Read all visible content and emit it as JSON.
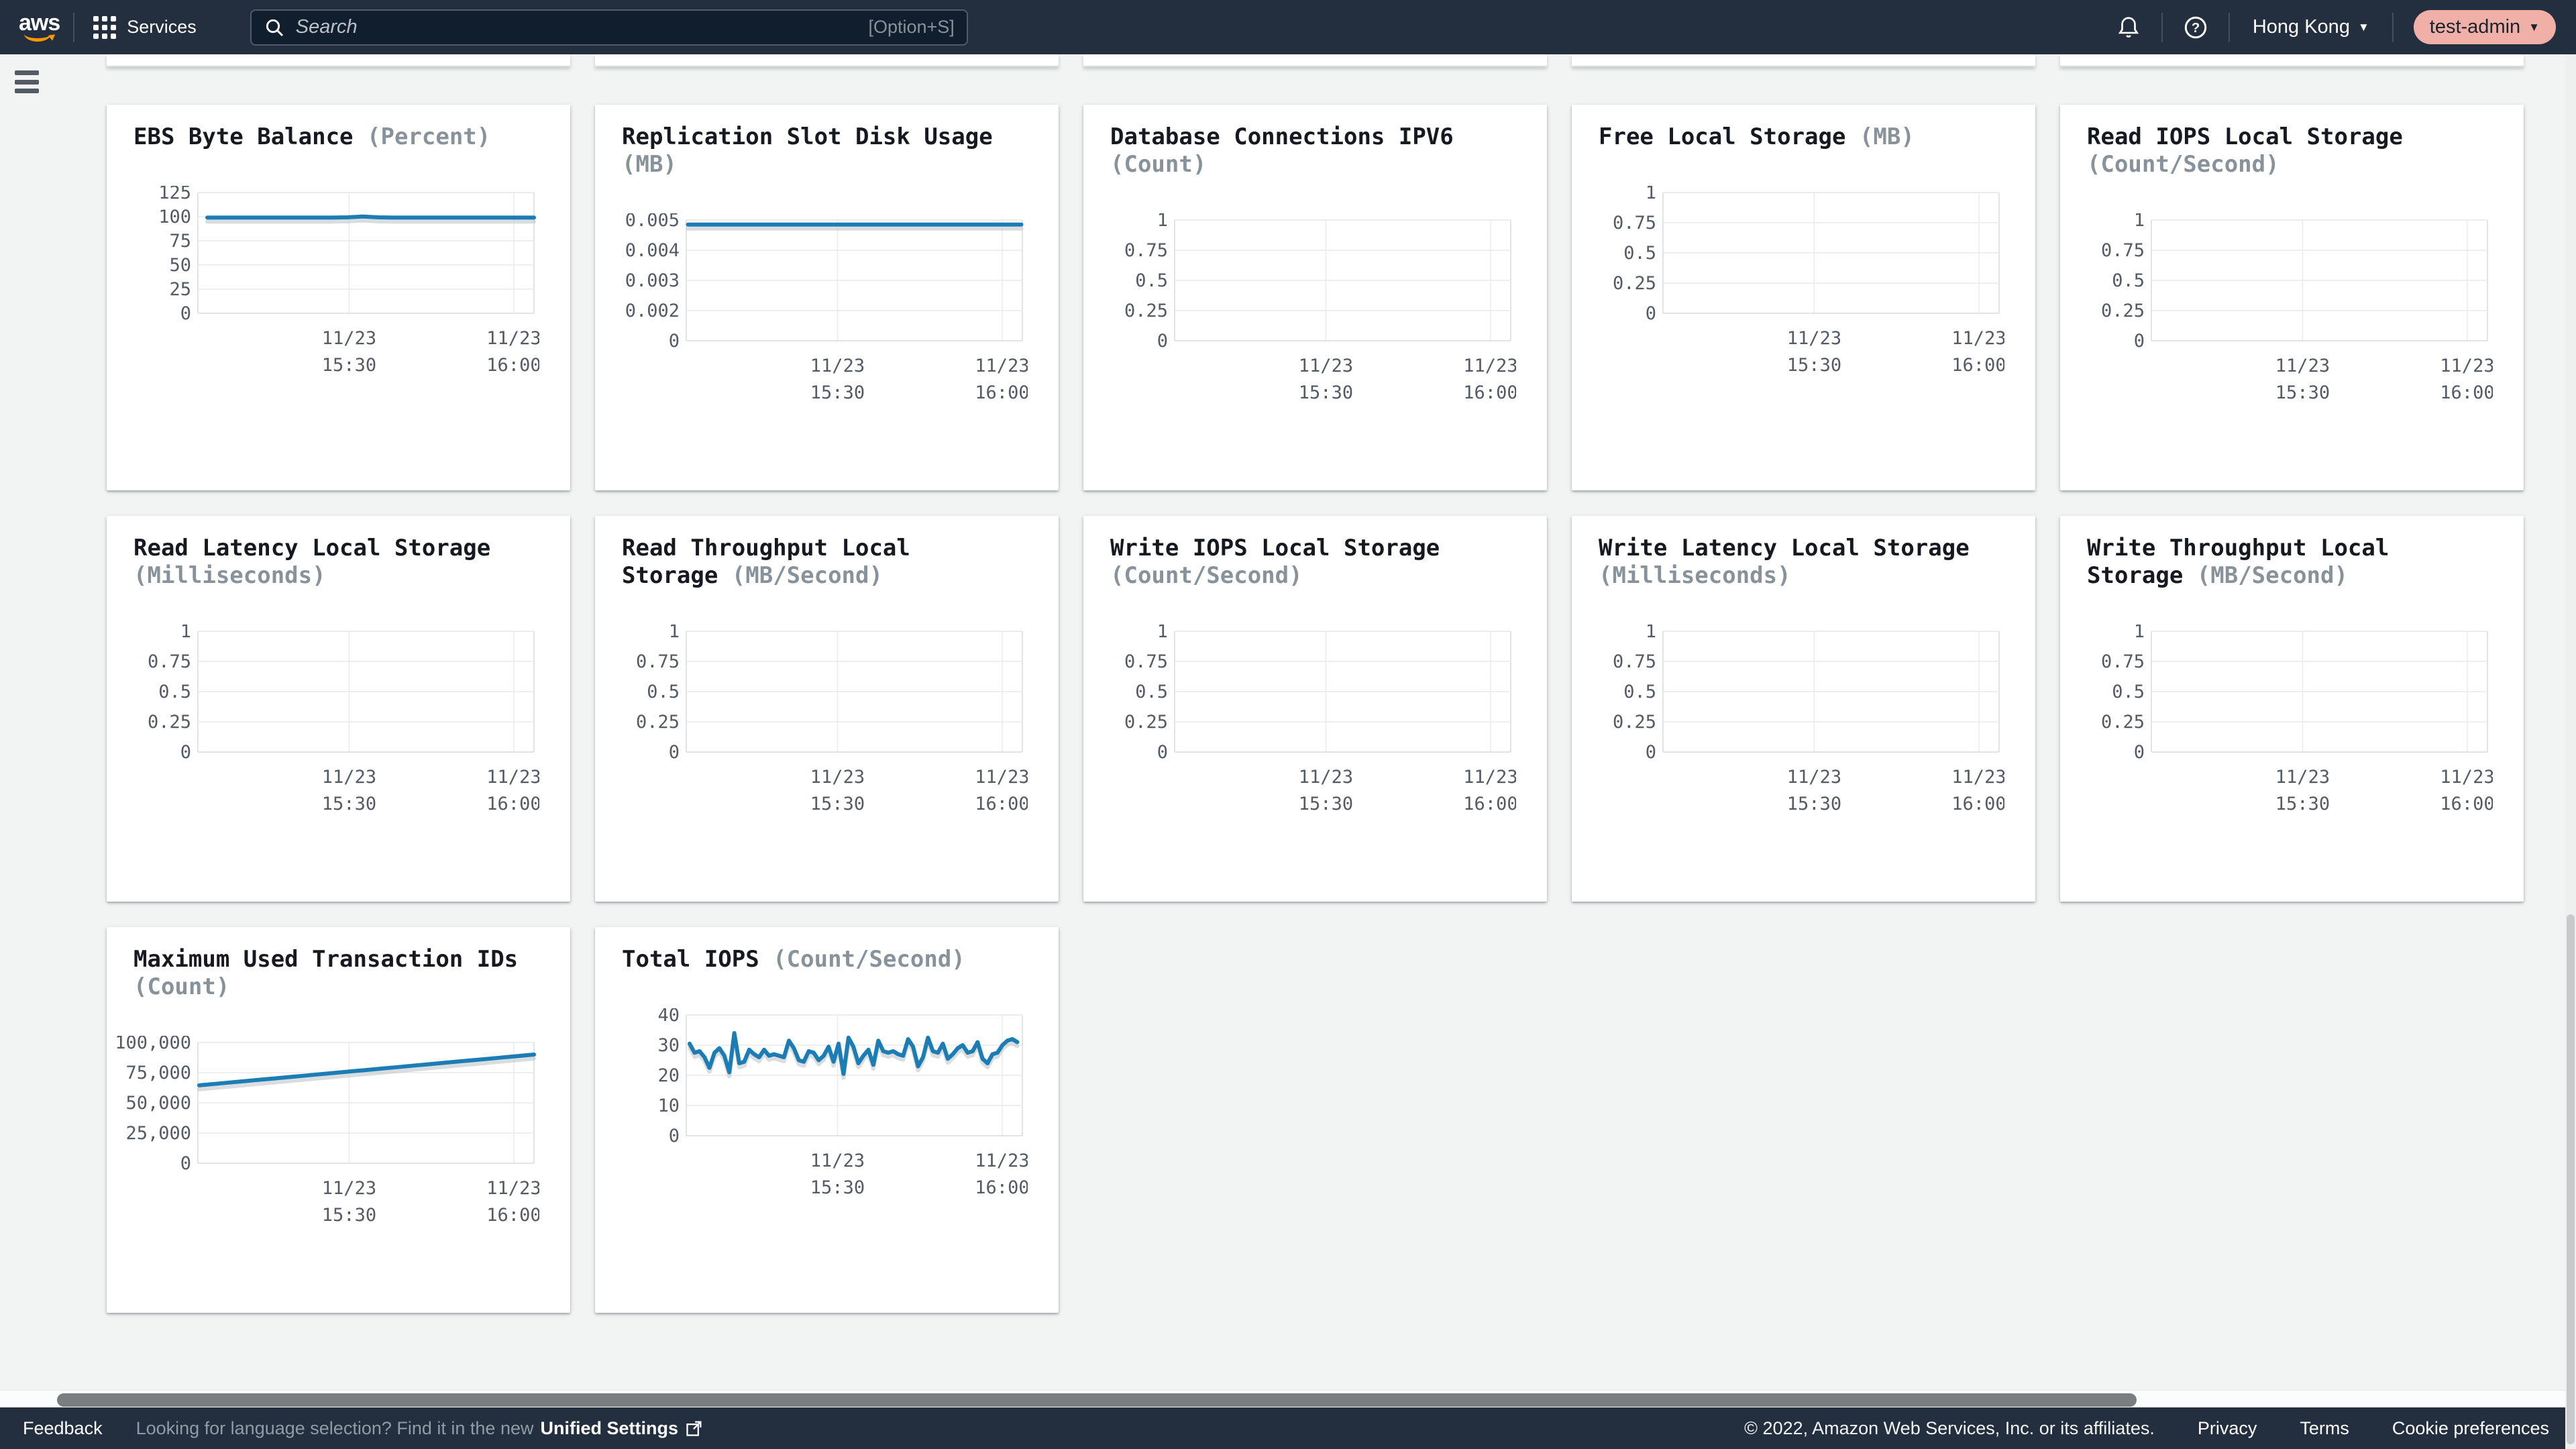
{
  "topnav": {
    "logo": "aws",
    "services_label": "Services",
    "search_placeholder": "Search",
    "search_shortcut": "[Option+S]",
    "region": "Hong Kong",
    "account": "test-admin"
  },
  "colors": {
    "navbar": "#232f3e",
    "background": "#f2f3f3",
    "accent_line": "#1c7db5",
    "line_shadow": "#c2c7c9",
    "account_pill": "#f0b0a7",
    "logo_smile": "#ff9900",
    "title_text": "#16191f",
    "unit_text": "#87929a",
    "tick_text": "#545b64"
  },
  "footer": {
    "feedback": "Feedback",
    "language_hint": "Looking for language selection? Find it in the new",
    "unified_settings": "Unified Settings",
    "copyright": "© 2022, Amazon Web Services, Inc. or its affiliates.",
    "links": [
      "Privacy",
      "Terms",
      "Cookie preferences"
    ]
  },
  "chart_data": [
    {
      "type": "line",
      "title": "EBS Byte Balance",
      "unit": "(Percent)",
      "x_ticks": [
        [
          "11/23",
          "15:30"
        ],
        [
          "11/23",
          "16:00"
        ]
      ],
      "y_ticks": [
        "0",
        "25",
        "50",
        "75",
        "100",
        "125"
      ],
      "y_tick_values": [
        0,
        25,
        50,
        75,
        100,
        125
      ],
      "ylim": [
        0,
        125
      ],
      "x_start": 0.028,
      "x_end": 1.0,
      "series": [
        {
          "name": "EBSByteBalance%",
          "values": [
            99,
            99,
            99,
            99,
            99,
            99,
            99,
            99,
            99,
            99.3,
            100.2,
            99.3,
            99,
            99,
            99,
            99,
            99,
            99,
            99,
            99,
            99,
            99
          ]
        }
      ]
    },
    {
      "type": "line",
      "title": "Replication Slot Disk Usage",
      "unit": "(MB)",
      "x_ticks": [
        [
          "11/23",
          "15:30"
        ],
        [
          "11/23",
          "16:00"
        ]
      ],
      "y_ticks": [
        "0",
        "0.002",
        "0.003",
        "0.004",
        "0.005"
      ],
      "y_tick_values": [
        0,
        0.002,
        0.003,
        0.004,
        0.005
      ],
      "ylim": [
        0,
        0.005
      ],
      "x_start": 0.005,
      "x_end": 0.997,
      "series": [
        {
          "name": "ReplicationSlotDiskUsage",
          "values": [
            0.00485,
            0.00485,
            0.00485,
            0.00485,
            0.00485,
            0.00485,
            0.00485,
            0.00485,
            0.00485,
            0.00485,
            0.00485,
            0.00485,
            0.00485,
            0.00485,
            0.00485,
            0.00485,
            0.00485,
            0.00485,
            0.00485,
            0.00485,
            0.00485,
            0.00485
          ]
        }
      ]
    },
    {
      "type": "line",
      "title": "Database Connections IPV6",
      "unit": "(Count)",
      "x_ticks": [
        [
          "11/23",
          "15:30"
        ],
        [
          "11/23",
          "16:00"
        ]
      ],
      "y_ticks": [
        "0",
        "0.25",
        "0.5",
        "0.75",
        "1"
      ],
      "y_tick_values": [
        0,
        0.25,
        0.5,
        0.75,
        1
      ],
      "ylim": [
        0,
        1
      ],
      "series": []
    },
    {
      "type": "line",
      "title": "Free Local Storage",
      "unit": "(MB)",
      "x_ticks": [
        [
          "11/23",
          "15:30"
        ],
        [
          "11/23",
          "16:00"
        ]
      ],
      "y_ticks": [
        "0",
        "0.25",
        "0.5",
        "0.75",
        "1"
      ],
      "y_tick_values": [
        0,
        0.25,
        0.5,
        0.75,
        1
      ],
      "ylim": [
        0,
        1
      ],
      "series": []
    },
    {
      "type": "line",
      "title": "Read IOPS Local Storage",
      "unit": "(Count/Second)",
      "x_ticks": [
        [
          "11/23",
          "15:30"
        ],
        [
          "11/23",
          "16:00"
        ]
      ],
      "y_ticks": [
        "0",
        "0.25",
        "0.5",
        "0.75",
        "1"
      ],
      "y_tick_values": [
        0,
        0.25,
        0.5,
        0.75,
        1
      ],
      "ylim": [
        0,
        1
      ],
      "series": []
    },
    {
      "type": "line",
      "title": "Read Latency Local Storage",
      "unit": "(Milliseconds)",
      "x_ticks": [
        [
          "11/23",
          "15:30"
        ],
        [
          "11/23",
          "16:00"
        ]
      ],
      "y_ticks": [
        "0",
        "0.25",
        "0.5",
        "0.75",
        "1"
      ],
      "y_tick_values": [
        0,
        0.25,
        0.5,
        0.75,
        1
      ],
      "ylim": [
        0,
        1
      ],
      "series": []
    },
    {
      "type": "line",
      "title": "Read Throughput Local Storage",
      "unit": "(MB/Second)",
      "x_ticks": [
        [
          "11/23",
          "15:30"
        ],
        [
          "11/23",
          "16:00"
        ]
      ],
      "y_ticks": [
        "0",
        "0.25",
        "0.5",
        "0.75",
        "1"
      ],
      "y_tick_values": [
        0,
        0.25,
        0.5,
        0.75,
        1
      ],
      "ylim": [
        0,
        1
      ],
      "series": []
    },
    {
      "type": "line",
      "title": "Write IOPS Local Storage",
      "unit": "(Count/Second)",
      "x_ticks": [
        [
          "11/23",
          "15:30"
        ],
        [
          "11/23",
          "16:00"
        ]
      ],
      "y_ticks": [
        "0",
        "0.25",
        "0.5",
        "0.75",
        "1"
      ],
      "y_tick_values": [
        0,
        0.25,
        0.5,
        0.75,
        1
      ],
      "ylim": [
        0,
        1
      ],
      "series": []
    },
    {
      "type": "line",
      "title": "Write Latency Local Storage",
      "unit": "(Milliseconds)",
      "x_ticks": [
        [
          "11/23",
          "15:30"
        ],
        [
          "11/23",
          "16:00"
        ]
      ],
      "y_ticks": [
        "0",
        "0.25",
        "0.5",
        "0.75",
        "1"
      ],
      "y_tick_values": [
        0,
        0.25,
        0.5,
        0.75,
        1
      ],
      "ylim": [
        0,
        1
      ],
      "series": []
    },
    {
      "type": "line",
      "title": "Write Throughput Local Storage",
      "unit": "(MB/Second)",
      "x_ticks": [
        [
          "11/23",
          "15:30"
        ],
        [
          "11/23",
          "16:00"
        ]
      ],
      "y_ticks": [
        "0",
        "0.25",
        "0.5",
        "0.75",
        "1"
      ],
      "y_tick_values": [
        0,
        0.25,
        0.5,
        0.75,
        1
      ],
      "ylim": [
        0,
        1
      ],
      "series": []
    },
    {
      "type": "line",
      "title": "Maximum Used Transaction IDs",
      "unit": "(Count)",
      "x_ticks": [
        [
          "11/23",
          "15:30"
        ],
        [
          "11/23",
          "16:00"
        ]
      ],
      "y_ticks": [
        "0",
        "25,000",
        "50,000",
        "75,000",
        "100,000"
      ],
      "y_tick_values": [
        0,
        25000,
        50000,
        75000,
        100000
      ],
      "ylim": [
        0,
        100000
      ],
      "x_start": 0.004,
      "x_end": 1.0,
      "series": [
        {
          "name": "MaximumUsedTransactionIDs",
          "values": [
            64500,
            65660,
            66820,
            67980,
            69140,
            70300,
            71450,
            72610,
            73770,
            74930,
            76090,
            77250,
            78400,
            79560,
            80720,
            81880,
            83040,
            84200,
            85350,
            86510,
            87670,
            88830,
            90000
          ]
        }
      ]
    },
    {
      "type": "line",
      "title": "Total IOPS",
      "unit": "(Count/Second)",
      "x_ticks": [
        [
          "11/23",
          "15:30"
        ],
        [
          "11/23",
          "16:00"
        ]
      ],
      "y_ticks": [
        "0",
        "10",
        "20",
        "30",
        "40"
      ],
      "y_tick_values": [
        0,
        10,
        20,
        30,
        40
      ],
      "ylim": [
        0,
        40
      ],
      "x_start": 0.01,
      "x_end": 0.985,
      "series": [
        {
          "name": "TotalIOPS",
          "values": [
            30.5,
            27.5,
            28,
            26,
            22.5,
            27.5,
            29,
            26.5,
            21,
            34,
            24,
            24.5,
            28.5,
            27,
            26,
            28.5,
            26.5,
            27,
            26.5,
            26,
            31.5,
            29,
            25,
            24.5,
            28,
            27.5,
            25,
            26.5,
            29.5,
            24.5,
            30.5,
            20.5,
            32.5,
            29.5,
            24,
            26.5,
            28.5,
            23.5,
            31.5,
            28,
            27.5,
            28,
            27,
            26.5,
            32,
            29.5,
            23,
            26,
            32.5,
            28,
            27.5,
            30.5,
            25.5,
            27,
            29,
            30,
            27.5,
            28,
            31,
            25.5,
            24,
            27,
            27.5,
            30,
            31.5,
            32,
            31
          ]
        }
      ]
    }
  ]
}
